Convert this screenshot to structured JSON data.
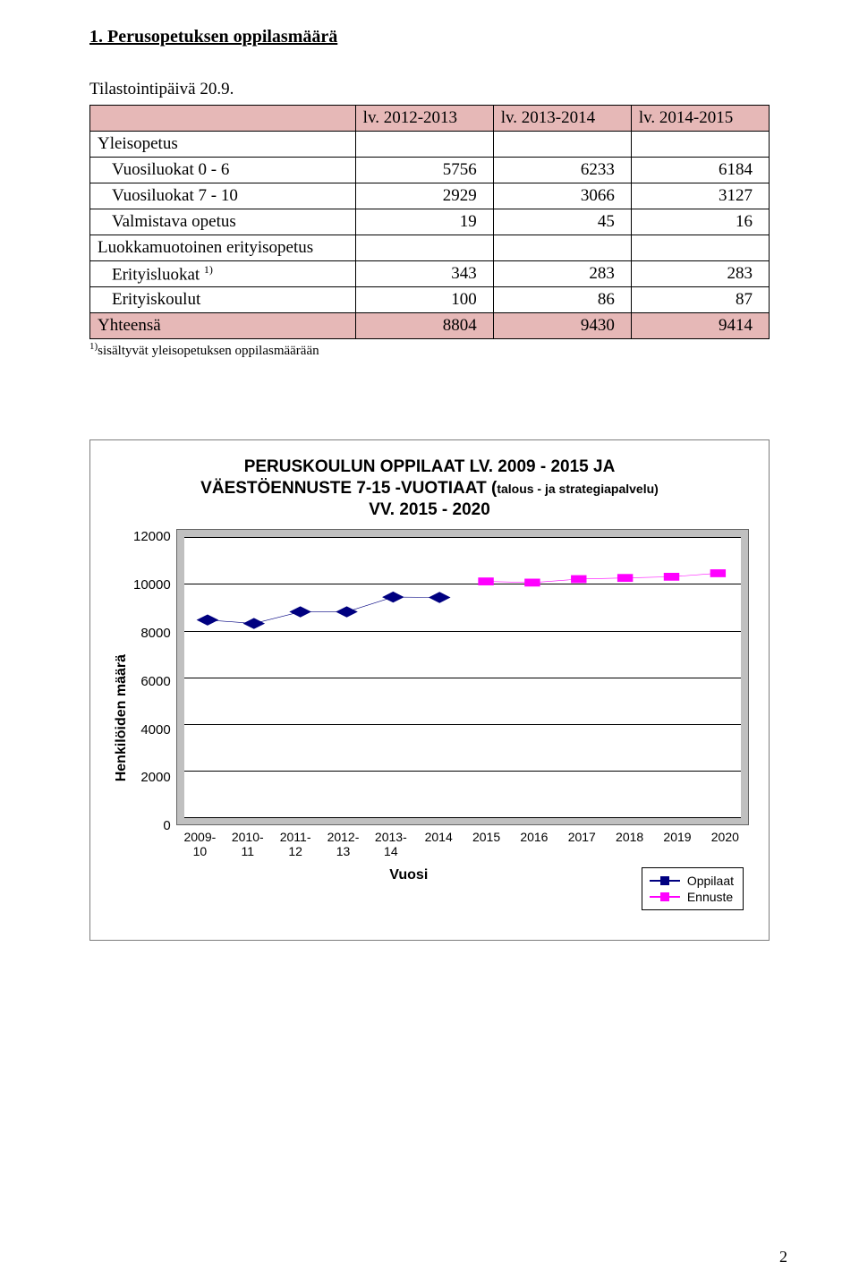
{
  "section_title": "1. Perusopetuksen oppilasmäärä",
  "subtitle": "Tilastointipäivä 20.9.",
  "table": {
    "headers": [
      "",
      "lv. 2012-2013",
      "lv. 2013-2014",
      "lv. 2014-2015"
    ],
    "rows": [
      {
        "label": "Yleisopetus",
        "v": [
          "",
          "",
          ""
        ],
        "indent": 0
      },
      {
        "label": "Vuosiluokat 0 - 6",
        "v": [
          "5756",
          "6233",
          "6184"
        ],
        "indent": 1
      },
      {
        "label": "Vuosiluokat 7 - 10",
        "v": [
          "2929",
          "3066",
          "3127"
        ],
        "indent": 1
      },
      {
        "label": "Valmistava opetus",
        "v": [
          "19",
          "45",
          "16"
        ],
        "indent": 1
      },
      {
        "label": "Luokkamuotoinen erityisopetus",
        "v": [
          "",
          "",
          ""
        ],
        "indent": 0
      },
      {
        "label_html": "Erityisluokat <span class='sup'>1)</span>",
        "v": [
          "343",
          "283",
          "283"
        ],
        "indent": 1
      },
      {
        "label": "Erityiskoulut",
        "v": [
          "100",
          "86",
          "87"
        ],
        "indent": 1
      }
    ],
    "total": {
      "label": "Yhteensä",
      "v": [
        "8804",
        "9430",
        "9414"
      ]
    },
    "footnote": "sisältyvät yleisopetuksen oppilasmäärään",
    "footnote_marker": "1)"
  },
  "chart": {
    "title_line1": "PERUSKOULUN OPPILAAT LV. 2009 - 2015 JA",
    "title_line2_a": "VÄESTÖENNUSTE 7-15 -VUOTIAAT (",
    "title_line2_paren": "talous - ja strategiapalvelu)",
    "title_line3": "VV. 2015 - 2020",
    "ylabel": "Henkilöiden määrä",
    "xlabel": "Vuosi",
    "ymin": 0,
    "ymax": 12000,
    "ystep": 2000,
    "yticks": [
      "12000",
      "10000",
      "8000",
      "6000",
      "4000",
      "2000",
      "0"
    ],
    "categories": [
      "2009-\n10",
      "2010-\n11",
      "2011-\n12",
      "2012-\n13",
      "2013-\n14",
      "2014",
      "2015",
      "2016",
      "2017",
      "2018",
      "2019",
      "2020"
    ],
    "series": [
      {
        "name": "Oppilaat",
        "color": "#000080",
        "marker": "diamond",
        "points": [
          8450,
          8300,
          8800,
          8800,
          9430,
          9414,
          null,
          null,
          null,
          null,
          null,
          null
        ]
      },
      {
        "name": "Ennuste",
        "color": "#ff00ff",
        "marker": "square",
        "points": [
          null,
          null,
          null,
          null,
          null,
          null,
          10100,
          10050,
          10200,
          10250,
          10300,
          10450
        ]
      }
    ],
    "legend": [
      "Oppilaat",
      "Ennuste"
    ],
    "grid_color": "#000000",
    "plot_bg": "#ffffff",
    "outer_bg": "#c0c0c0"
  },
  "page_number": "2"
}
